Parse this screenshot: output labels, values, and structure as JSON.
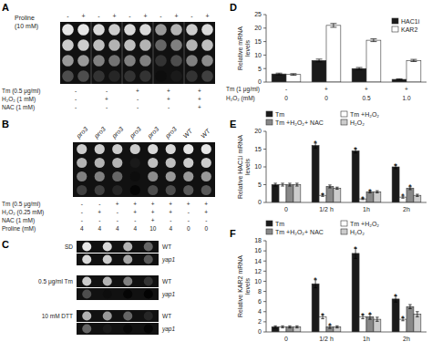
{
  "chart_data": [
    {
      "type": "spot_assay",
      "title": "A",
      "annotations": [
        "Proline",
        "(10 mM)"
      ],
      "categories": [
        "-",
        "+",
        "-",
        "+",
        "-",
        "+",
        "-",
        "+",
        "-",
        "+"
      ],
      "color": "#111111",
      "cells": [
        [
          0.9,
          0.9,
          0.85,
          0.8,
          0.85,
          0.85,
          0.6,
          0.7,
          0.8,
          0.85
        ],
        [
          0.8,
          0.8,
          0.75,
          0.7,
          0.75,
          0.7,
          0.4,
          0.5,
          0.7,
          0.75
        ],
        [
          0.6,
          0.6,
          0.5,
          0.45,
          0.5,
          0.5,
          0.2,
          0.3,
          0.5,
          0.55
        ],
        [
          0.3,
          0.3,
          0.2,
          0.15,
          0.2,
          0.2,
          0.05,
          0.1,
          0.2,
          0.25
        ]
      ],
      "conditions": [
        {
          "label": "Tm (0.5 μg/ml)",
          "values": [
            "-",
            "-",
            "+",
            "+",
            "+"
          ]
        },
        {
          "label": "H₂O₂ (1 mM)",
          "values": [
            "-",
            "+",
            "-",
            "+",
            "+"
          ]
        },
        {
          "label": "NAC (1 mM)",
          "values": [
            "-",
            "-",
            "-",
            "-",
            "+"
          ]
        }
      ]
    },
    {
      "type": "spot_assay",
      "title": "B",
      "categories": [
        "pro3",
        "pro3",
        "pro3",
        "pro3",
        "pro3",
        "pro3",
        "WT",
        "WT"
      ],
      "color": "#111111",
      "cells": [
        [
          0.8,
          0.8,
          0.8,
          0.8,
          0.85,
          0.85,
          0.9,
          0.9
        ],
        [
          0.7,
          0.7,
          0.7,
          0.1,
          0.75,
          0.75,
          0.8,
          0.8
        ],
        [
          0.5,
          0.5,
          0.4,
          0.05,
          0.55,
          0.6,
          0.6,
          0.6
        ],
        [
          0.25,
          0.25,
          0.15,
          0.02,
          0.3,
          0.3,
          0.35,
          0.35
        ]
      ],
      "conditions": [
        {
          "label": "Tm (0.5 μg/ml)",
          "values": [
            "-",
            "-",
            "+",
            "+",
            "+",
            "+",
            "+",
            "+"
          ]
        },
        {
          "label": "H₂O₂ (0.25 mM)",
          "values": [
            "-",
            "+",
            "-",
            "+",
            "+",
            "+",
            "-",
            "+"
          ]
        },
        {
          "label": "NAC (1 mM)",
          "values": [
            "-",
            "-",
            "-",
            "-",
            "+",
            "-",
            "-",
            "-"
          ]
        },
        {
          "label": "Proline (mM)",
          "values": [
            "4",
            "4",
            "4",
            "4",
            "10",
            "4",
            "0",
            "0"
          ]
        }
      ]
    },
    {
      "type": "spot_assay",
      "title": "C",
      "categories": [
        "SD",
        "0.5 μg/ml Tm",
        "10 mM DTT"
      ],
      "strains": [
        [
          "WT",
          "yap1"
        ],
        [
          "WT",
          "yap1"
        ],
        [
          "WT",
          "yap1"
        ]
      ],
      "color": "#111111",
      "cells": [
        [
          [
            0.9,
            0.85,
            0.7,
            0.4
          ],
          [
            0.85,
            0.8,
            0.65,
            0.35
          ]
        ],
        [
          [
            0.8,
            0.7,
            0.5,
            0.2
          ],
          [
            0.3,
            0.05,
            0.02,
            0.01
          ]
        ],
        [
          [
            0.7,
            0.6,
            0.4,
            0.15
          ],
          [
            0.4,
            0.1,
            0.03,
            0.02
          ]
        ]
      ]
    },
    {
      "type": "bar",
      "title": "D",
      "ylabel": "Relative mRNA\nlevels",
      "categories": [
        null,
        null,
        null,
        null
      ],
      "conditions": [
        {
          "label": "Tm (1 μg/ml)",
          "values": [
            "-",
            "+",
            "+",
            "+"
          ]
        },
        {
          "label": "H₂O₂ (mM)",
          "values": [
            "0",
            "0",
            "0.5",
            "1.0"
          ]
        }
      ],
      "series": [
        {
          "name": "HAC1i",
          "color": "#1a1a1a",
          "values": [
            3.0,
            8.0,
            5.0,
            1.0
          ],
          "errors": [
            0.3,
            0.5,
            0.4,
            0.2
          ]
        },
        {
          "name": "KAR2",
          "color": "#ffffff",
          "values": [
            2.8,
            21.0,
            15.5,
            8.0
          ],
          "errors": [
            0.3,
            0.7,
            0.5,
            0.4
          ]
        }
      ],
      "ylim": [
        0,
        25
      ],
      "yticks": [
        0,
        5,
        10,
        15,
        20,
        25
      ],
      "grid": false,
      "legend": "upper right"
    },
    {
      "type": "bar",
      "title": "E",
      "ylabel": "Relative HAC1i mRNA\nlevels",
      "categories": [
        "0",
        "1/2 h",
        "1h",
        "2h"
      ],
      "series": [
        {
          "name": "Tm",
          "color": "#1a1a1a",
          "values": [
            5.0,
            16.0,
            14.5,
            10.0
          ],
          "errors": [
            0.4,
            0.7,
            0.6,
            0.5
          ],
          "annotations": [
            null,
            "*",
            "*",
            "*"
          ]
        },
        {
          "name": "Tm +H₂O₂",
          "color": "#ffffff",
          "values": [
            5.0,
            2.0,
            1.0,
            1.5
          ],
          "errors": [
            0.4,
            0.3,
            0.2,
            0.3
          ],
          "annotations": [
            null,
            "*",
            "*",
            "*"
          ]
        },
        {
          "name": "Tm +H₂O₂+ NAC",
          "color": "#888888",
          "values": [
            5.0,
            4.5,
            3.0,
            4.0
          ],
          "errors": [
            0.4,
            0.4,
            0.3,
            0.4
          ],
          "annotations": [
            null,
            null,
            "*",
            "*"
          ]
        },
        {
          "name": "H₂O₂",
          "color": "#cccccc",
          "values": [
            5.0,
            4.0,
            3.0,
            2.0
          ],
          "errors": [
            0.4,
            0.3,
            0.3,
            0.3
          ],
          "annotations": [
            null,
            null,
            null,
            null
          ]
        }
      ],
      "ylim": [
        0,
        20
      ],
      "yticks": [
        0,
        5,
        10,
        15,
        20
      ],
      "grid": false,
      "legend": "top"
    },
    {
      "type": "bar",
      "title": "F",
      "ylabel": "Relative KAR2 mRNA\nlevels",
      "categories": [
        "0",
        "1/2 h",
        "1h",
        "2h"
      ],
      "series": [
        {
          "name": "Tm",
          "color": "#1a1a1a",
          "values": [
            1.0,
            9.5,
            15.5,
            6.5
          ],
          "errors": [
            0.2,
            0.8,
            1.0,
            0.6
          ],
          "annotations": [
            null,
            "*",
            "*",
            "*"
          ]
        },
        {
          "name": "Tm +H₂O₂",
          "color": "#ffffff",
          "values": [
            1.0,
            3.0,
            3.0,
            2.5
          ],
          "errors": [
            0.2,
            0.4,
            0.4,
            0.3
          ],
          "annotations": [
            null,
            "*",
            "*",
            "*"
          ]
        },
        {
          "name": "Tm +H₂O₂+ NAC",
          "color": "#888888",
          "values": [
            1.0,
            1.0,
            3.0,
            5.0
          ],
          "errors": [
            0.2,
            0.3,
            0.5,
            0.4
          ],
          "annotations": [
            null,
            "*",
            "*",
            null
          ]
        },
        {
          "name": "H₂O₂",
          "color": "#cccccc",
          "values": [
            1.0,
            1.0,
            2.5,
            3.5
          ],
          "errors": [
            0.2,
            0.2,
            0.4,
            0.5
          ],
          "annotations": [
            null,
            null,
            null,
            null
          ]
        }
      ],
      "ylim": [
        0,
        18
      ],
      "yticks": [
        0,
        2,
        4,
        6,
        8,
        10,
        12,
        14,
        16,
        18
      ],
      "grid": false,
      "legend": "top"
    }
  ]
}
